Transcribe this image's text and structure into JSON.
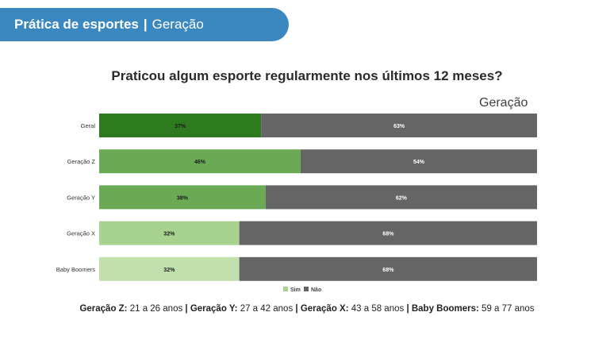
{
  "header": {
    "section": "Prática de esportes",
    "separator": "|",
    "subsection": "Geração"
  },
  "chart_data": {
    "type": "bar",
    "orientation": "horizontal",
    "stacked": true,
    "title": "Praticou algum esporte regularmente nos últimos 12 meses?",
    "subtitle": "Geração",
    "categories": [
      "Geral",
      "Geração Z",
      "Geração Y",
      "Geração X",
      "Baby Boomers"
    ],
    "series": [
      {
        "name": "Sim",
        "values": [
          37,
          46,
          38,
          32,
          32
        ],
        "labels": [
          "37%",
          "46%",
          "38%",
          "32%",
          "32%"
        ],
        "colors": [
          "#2e7a1e",
          "#6aaa55",
          "#6aaa55",
          "#a7d28f",
          "#c2e0ae"
        ],
        "legend_color": "#a7d28f"
      },
      {
        "name": "Não",
        "values": [
          63,
          54,
          62,
          68,
          68
        ],
        "labels": [
          "63%",
          "54%",
          "62%",
          "68%",
          "68%"
        ],
        "colors": [
          "#666566",
          "#666566",
          "#666566",
          "#666566",
          "#666566"
        ],
        "legend_color": "#666566"
      }
    ],
    "xlim": [
      0,
      100
    ],
    "grid": false,
    "legend_position": "bottom"
  },
  "footnote": [
    {
      "label": "Geração Z:",
      "text": "21 a 26 anos"
    },
    {
      "label": "Geração Y:",
      "text": "27 a 42 anos"
    },
    {
      "label": "Geração X:",
      "text": "43 a 58 anos"
    },
    {
      "label": "Baby Boomers:",
      "text": "59 a 77 anos"
    }
  ],
  "footnote_separator": " | "
}
